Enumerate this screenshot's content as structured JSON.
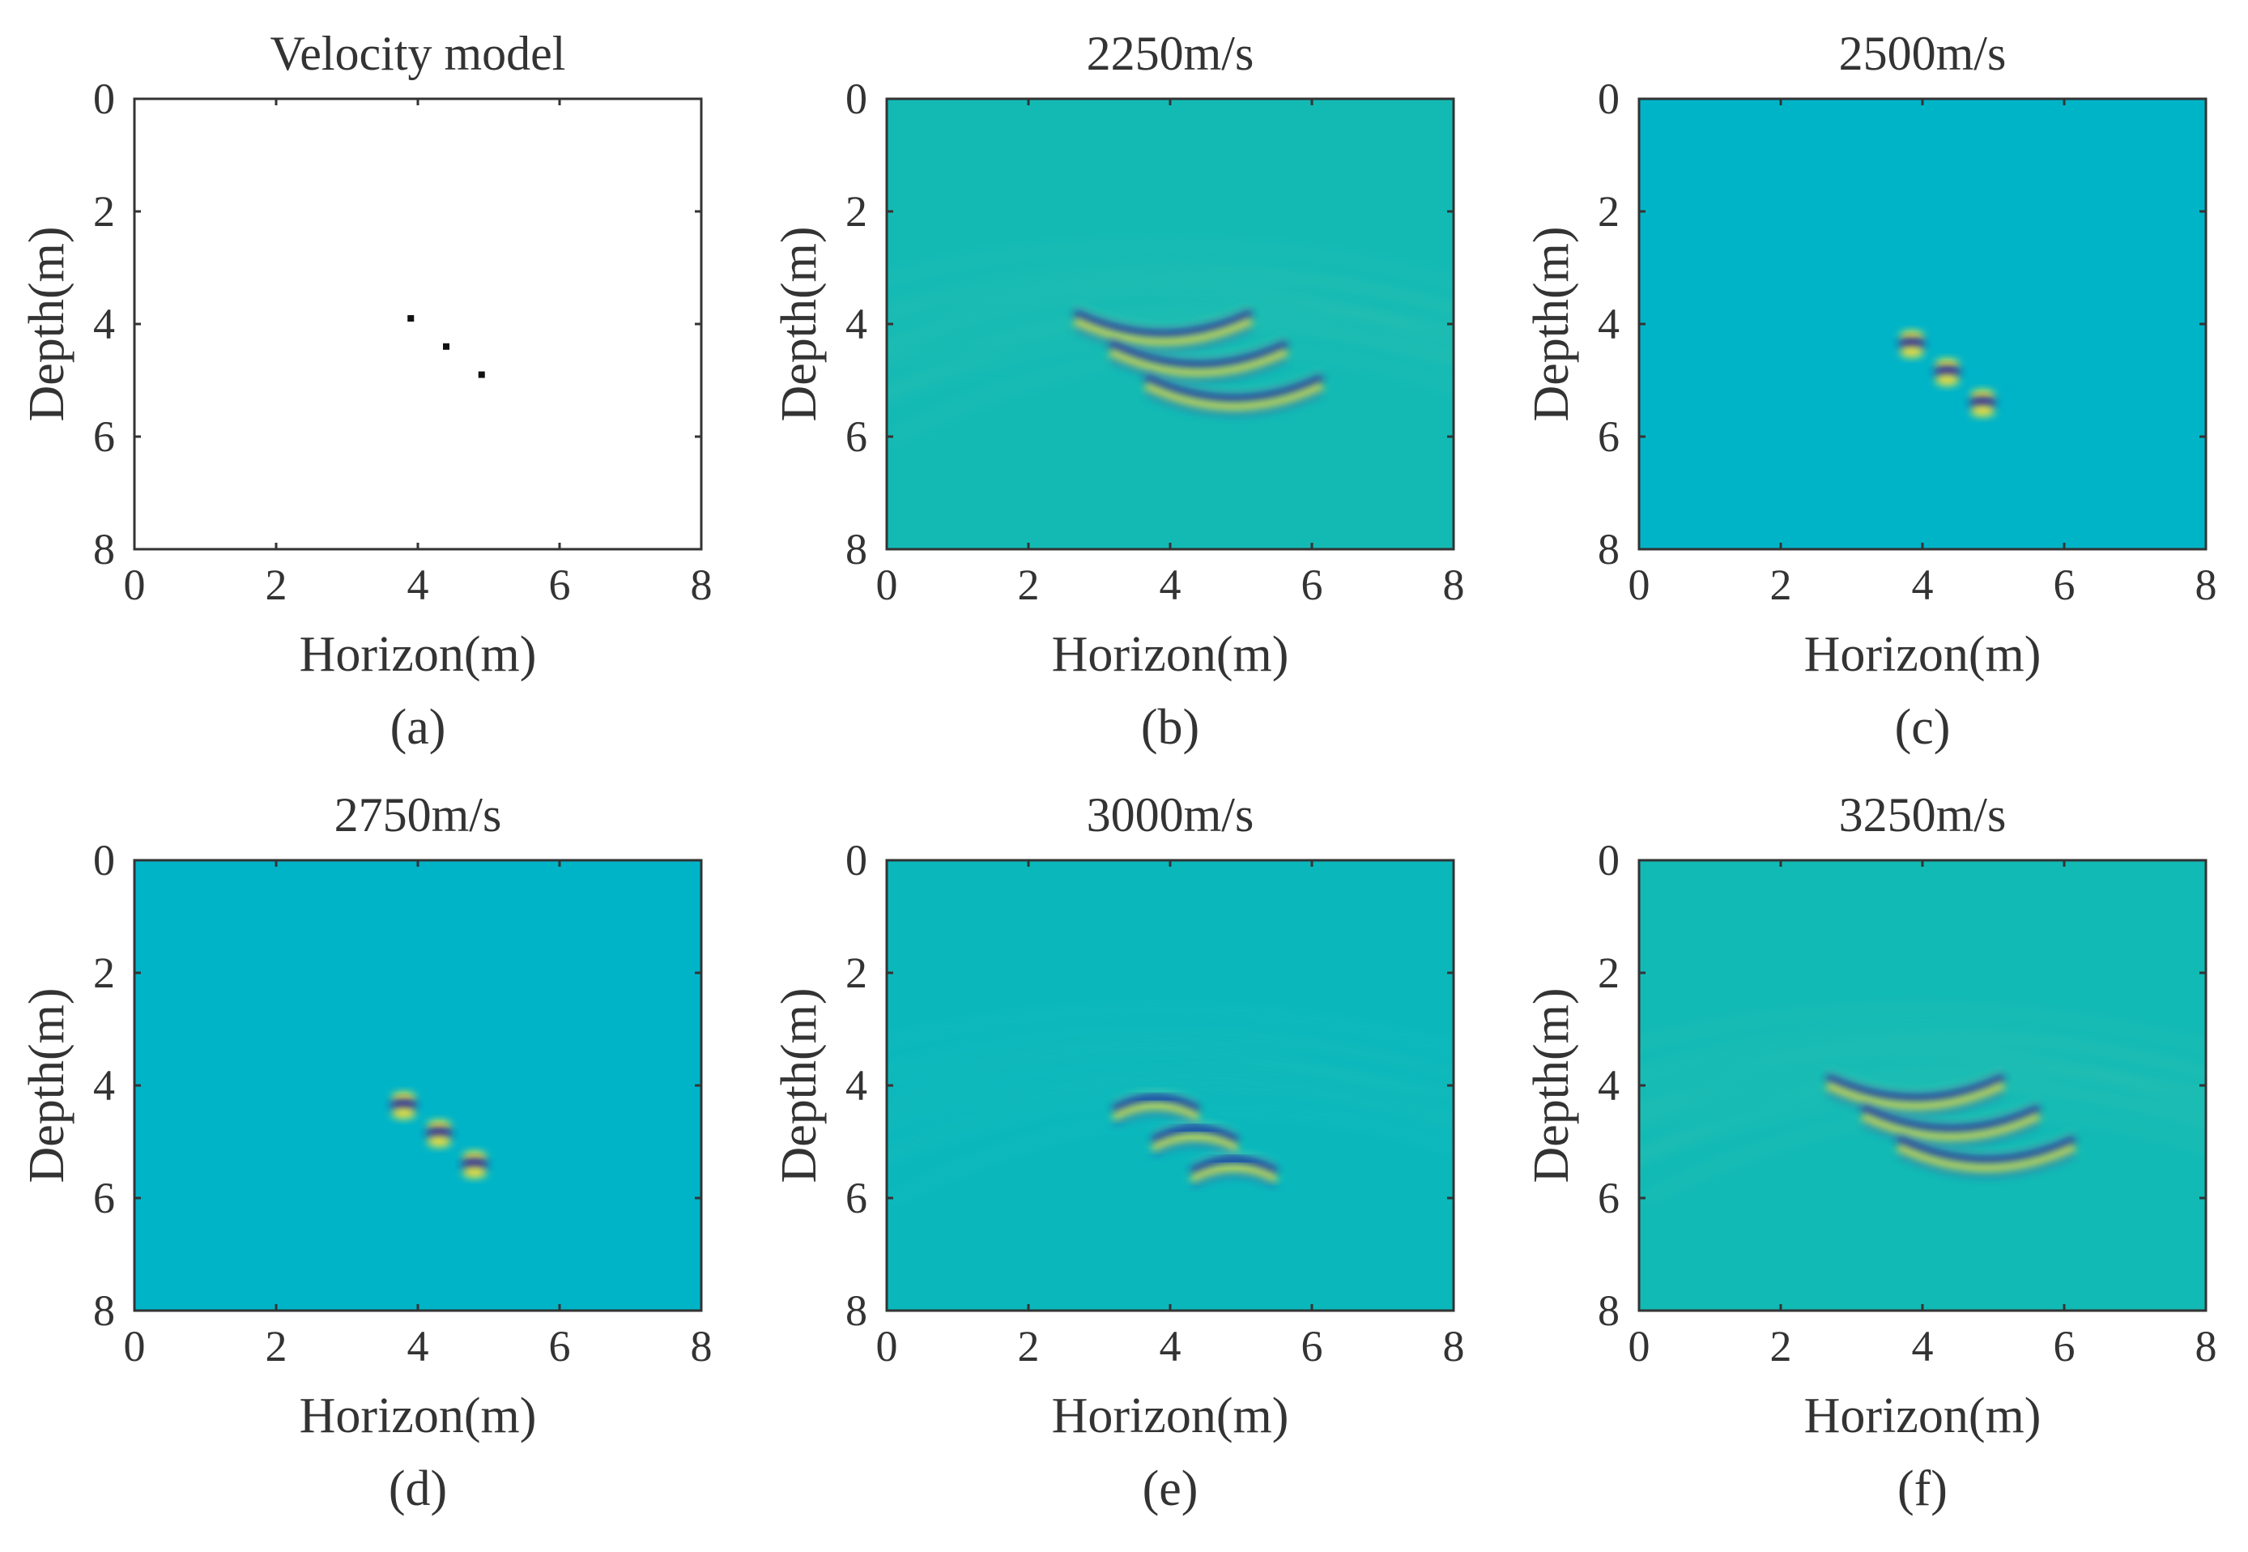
{
  "figure": {
    "panel_count": 6
  },
  "chart_data": [
    {
      "type": "scatter",
      "panel": "a",
      "caption": "(a)",
      "title": "Velocity model",
      "xlabel": "Horizon(m)",
      "ylabel": "Depth(m)",
      "xlim": [
        0,
        8
      ],
      "ylim": [
        0,
        8
      ],
      "y_inverted": true,
      "xticks": [
        0,
        2,
        4,
        6,
        8
      ],
      "yticks": [
        0,
        2,
        4,
        6,
        8
      ],
      "background": "#ffffff",
      "points": [
        {
          "x": 3.9,
          "y": 3.9
        },
        {
          "x": 4.4,
          "y": 4.4
        },
        {
          "x": 4.9,
          "y": 4.9
        }
      ]
    },
    {
      "type": "heatmap",
      "panel": "b",
      "caption": "(b)",
      "title": "2250m/s",
      "xlabel": "Horizon(m)",
      "ylabel": "Depth(m)",
      "xlim": [
        0,
        8
      ],
      "ylim": [
        0,
        8
      ],
      "y_inverted": true,
      "xticks": [
        0,
        2,
        4,
        6,
        8
      ],
      "yticks": [
        0,
        2,
        4,
        6,
        8
      ],
      "background": "#13bab4",
      "scatterer_focus": "defocused-smile",
      "arc_half_width": 1.25,
      "scatterers": [
        {
          "x": 3.9,
          "y": 4.25
        },
        {
          "x": 4.4,
          "y": 4.8
        },
        {
          "x": 4.9,
          "y": 5.4
        }
      ]
    },
    {
      "type": "heatmap",
      "panel": "c",
      "caption": "(c)",
      "title": "2500m/s",
      "xlabel": "Horizon(m)",
      "ylabel": "Depth(m)",
      "xlim": [
        0,
        8
      ],
      "ylim": [
        0,
        8
      ],
      "y_inverted": true,
      "xticks": [
        0,
        2,
        4,
        6,
        8
      ],
      "yticks": [
        0,
        2,
        4,
        6,
        8
      ],
      "background": "#00b4c8",
      "scatterer_focus": "focused",
      "arc_half_width": 0.2,
      "scatterers": [
        {
          "x": 3.85,
          "y": 4.35
        },
        {
          "x": 4.35,
          "y": 4.85
        },
        {
          "x": 4.85,
          "y": 5.4
        }
      ]
    },
    {
      "type": "heatmap",
      "panel": "d",
      "caption": "(d)",
      "title": "2750m/s",
      "xlabel": "Horizon(m)",
      "ylabel": "Depth(m)",
      "xlim": [
        0,
        8
      ],
      "ylim": [
        0,
        8
      ],
      "y_inverted": true,
      "xticks": [
        0,
        2,
        4,
        6,
        8
      ],
      "yticks": [
        0,
        2,
        4,
        6,
        8
      ],
      "background": "#00b4c8",
      "scatterer_focus": "focused",
      "arc_half_width": 0.2,
      "scatterers": [
        {
          "x": 3.8,
          "y": 4.35
        },
        {
          "x": 4.3,
          "y": 4.85
        },
        {
          "x": 4.8,
          "y": 5.4
        }
      ]
    },
    {
      "type": "heatmap",
      "panel": "e",
      "caption": "(e)",
      "title": "3000m/s",
      "xlabel": "Horizon(m)",
      "ylabel": "Depth(m)",
      "xlim": [
        0,
        8
      ],
      "ylim": [
        0,
        8
      ],
      "y_inverted": true,
      "xticks": [
        0,
        2,
        4,
        6,
        8
      ],
      "yticks": [
        0,
        2,
        4,
        6,
        8
      ],
      "background": "#0ab8bc",
      "scatterer_focus": "slightly-defocused-frown",
      "arc_half_width": 0.6,
      "scatterers": [
        {
          "x": 3.8,
          "y": 4.3
        },
        {
          "x": 4.35,
          "y": 4.85
        },
        {
          "x": 4.9,
          "y": 5.4
        }
      ]
    },
    {
      "type": "heatmap",
      "panel": "f",
      "caption": "(f)",
      "title": "3250m/s",
      "xlabel": "Horizon(m)",
      "ylabel": "Depth(m)",
      "xlim": [
        0,
        8
      ],
      "ylim": [
        0,
        8
      ],
      "y_inverted": true,
      "xticks": [
        0,
        2,
        4,
        6,
        8
      ],
      "yticks": [
        0,
        2,
        4,
        6,
        8
      ],
      "background": "#12bab5",
      "scatterer_focus": "defocused-smile",
      "arc_half_width": 1.25,
      "scatterers": [
        {
          "x": 3.9,
          "y": 4.3
        },
        {
          "x": 4.4,
          "y": 4.85
        },
        {
          "x": 4.9,
          "y": 5.4
        }
      ]
    }
  ]
}
